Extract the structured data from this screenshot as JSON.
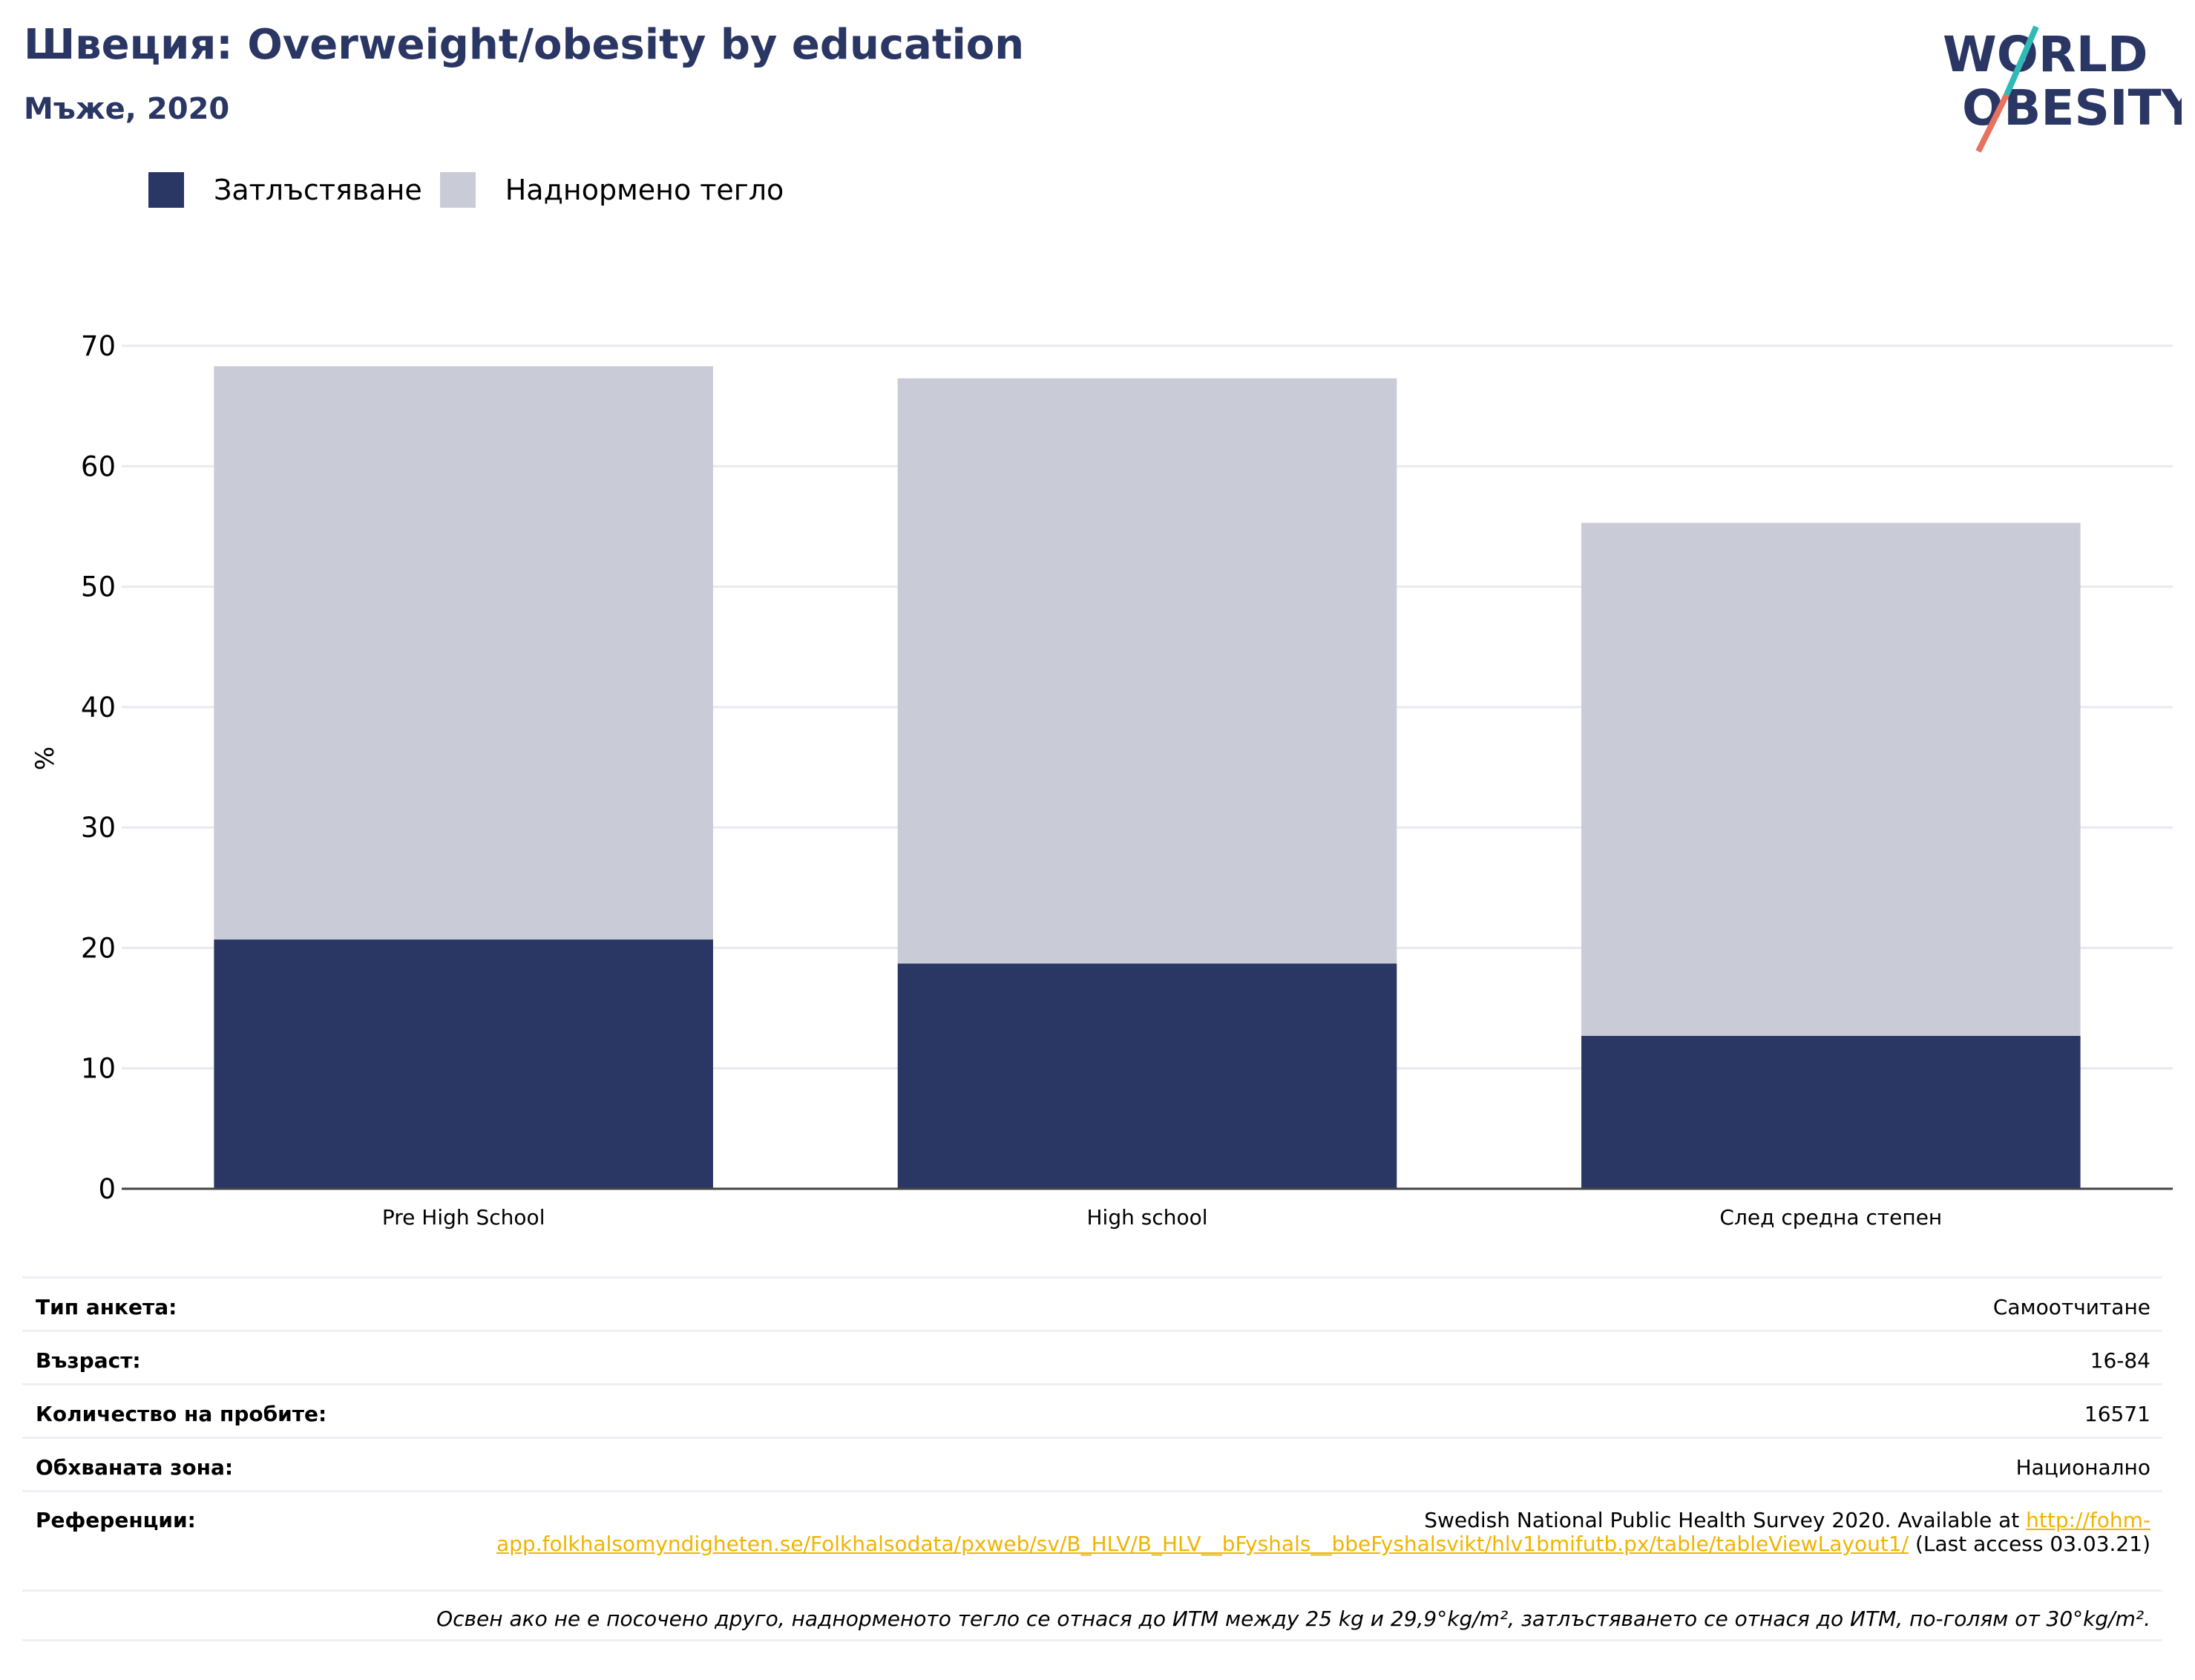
{
  "header": {
    "title": "Швеция: Overweight/obesity by education",
    "subtitle": "Мъже, 2020"
  },
  "logo": {
    "line1": "WORLD",
    "line2": "OBESITY",
    "slash_color_top": "#2fb9b7",
    "slash_color_bottom": "#e8725f"
  },
  "colors": {
    "obesity": "#2a3663",
    "overweight": "#c9cbd7",
    "axis": "#444444",
    "grid": "#e8eaf0"
  },
  "legend": [
    {
      "label": "Затлъстяване",
      "color": "#2a3663"
    },
    {
      "label": "Наднормено тегло",
      "color": "#c9cbd7"
    }
  ],
  "chart_data": {
    "type": "bar",
    "stacked": true,
    "categories": [
      "Pre High School",
      "High school",
      "След средна степен"
    ],
    "series": [
      {
        "name": "Затлъстяване",
        "values": [
          20.7,
          18.7,
          12.7
        ]
      },
      {
        "name": "Наднормено тегло",
        "values": [
          47.6,
          48.6,
          42.6
        ]
      }
    ],
    "totals": [
      68.3,
      67.3,
      55.3
    ],
    "ylabel": "%",
    "xlabel": "",
    "ylim": [
      0,
      70
    ],
    "yticks": [
      0,
      10,
      20,
      30,
      40,
      50,
      60,
      70
    ],
    "grid": true
  },
  "info": {
    "rows": [
      {
        "key": "Тип анкета:",
        "value": "Самоотчитане"
      },
      {
        "key": "Възраст:",
        "value": "16-84"
      },
      {
        "key": "Количество на пробите:",
        "value": "16571"
      },
      {
        "key": "Обхваната зона:",
        "value": "Национално"
      }
    ],
    "reference": {
      "key": "Референции:",
      "text_before": "Swedish National Public Health Survey 2020. Available at ",
      "link": "http://fohm-app.folkhalsomyndigheten.se/Folkhalsodata/pxweb/sv/B_HLV/B_HLV__bFyshals__bbeFyshalsvikt/hlv1bmifutb.px/table/tableViewLayout1/",
      "text_after": " (Last access 03.03.21)"
    },
    "note": "Освен ако не е посочено друго, наднорменото тегло се отнася до ИТМ между 25 kg и 29,9°kg/m², затлъстяването се отнася до ИТМ, по-голям от 30°kg/m²."
  }
}
